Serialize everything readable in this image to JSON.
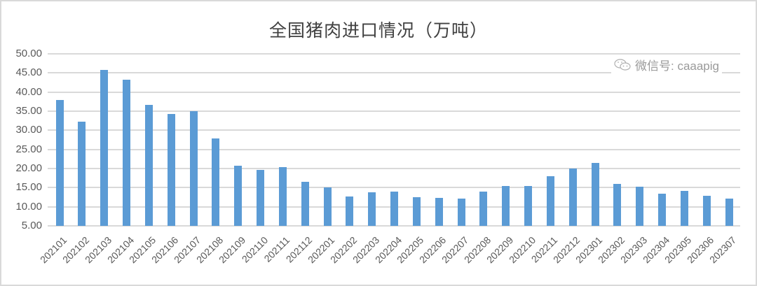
{
  "chart_data": {
    "type": "bar",
    "title": "全国猪肉进口情况（万吨）",
    "xlabel": "",
    "ylabel": "",
    "ylim": [
      5,
      50
    ],
    "yticks": [
      "50.00",
      "45.00",
      "40.00",
      "35.00",
      "30.00",
      "25.00",
      "20.00",
      "15.00",
      "10.00",
      "5.00"
    ],
    "grid": true,
    "legend": null,
    "bar_color": "#5b9bd5",
    "categories": [
      "202101",
      "202102",
      "202103",
      "202104",
      "202105",
      "202106",
      "202107",
      "202108",
      "202109",
      "202110",
      "202111",
      "202112",
      "202201",
      "202202",
      "202203",
      "202204",
      "202205",
      "202206",
      "202207",
      "202208",
      "202209",
      "202210",
      "202211",
      "202212",
      "202301",
      "202302",
      "202303",
      "202304",
      "202305",
      "202306",
      "202307"
    ],
    "values": [
      37.9,
      32.2,
      45.8,
      43.2,
      36.6,
      34.3,
      35.0,
      27.8,
      20.8,
      19.6,
      20.3,
      16.6,
      15.0,
      12.7,
      13.8,
      14.0,
      12.5,
      12.3,
      12.1,
      14.0,
      15.4,
      15.5,
      18.0,
      20.0,
      21.4,
      16.0,
      15.2,
      13.4,
      14.1,
      12.9,
      12.1
    ]
  },
  "watermark": {
    "icon": "wechat-icon",
    "text": "微信号: caaapig"
  }
}
